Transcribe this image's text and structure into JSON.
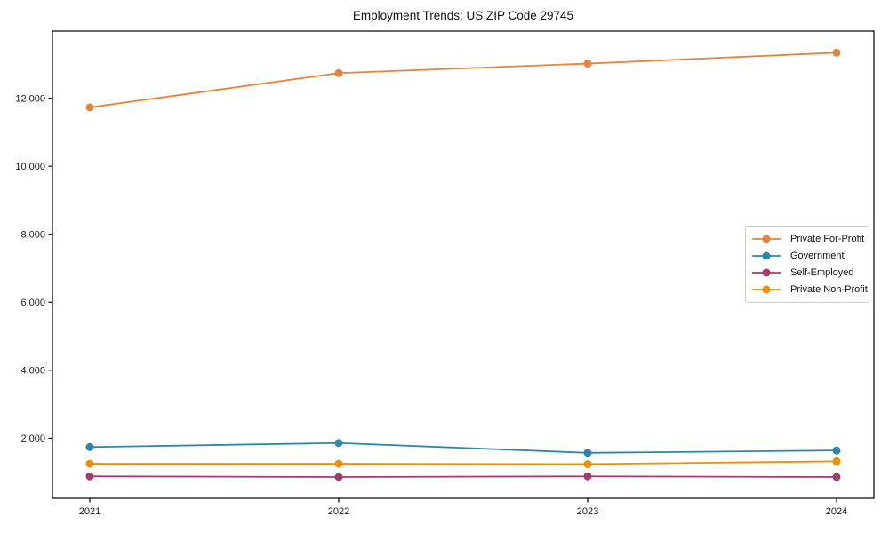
{
  "chart_data": {
    "type": "line",
    "title": "Employment Trends: US ZIP Code 29745",
    "xlabel": "",
    "ylabel": "",
    "x": [
      2021,
      2022,
      2023,
      2024
    ],
    "x_tick_labels": [
      "2021",
      "2022",
      "2023",
      "2024"
    ],
    "series": [
      {
        "name": "Private For-Profit",
        "color": "#E8823C",
        "values": [
          11730,
          12740,
          13020,
          13340
        ]
      },
      {
        "name": "Government",
        "color": "#2E86AB",
        "values": [
          1740,
          1860,
          1570,
          1640
        ]
      },
      {
        "name": "Self-Employed",
        "color": "#A23B72",
        "values": [
          880,
          860,
          880,
          860
        ]
      },
      {
        "name": "Private Non-Profit",
        "color": "#F18F01",
        "values": [
          1250,
          1250,
          1240,
          1320
        ]
      }
    ],
    "yticks": [
      2000,
      4000,
      6000,
      8000,
      10000,
      12000
    ],
    "ytick_labels": [
      "2,000",
      "4,000",
      "6,000",
      "8,000",
      "10,000",
      "12,000"
    ],
    "ylim": [
      233,
      13975
    ],
    "xlim": [
      -0.15,
      3.15
    ],
    "grid": false,
    "legend_position": "center right",
    "marker": "circle",
    "axis_color": "#000000"
  }
}
